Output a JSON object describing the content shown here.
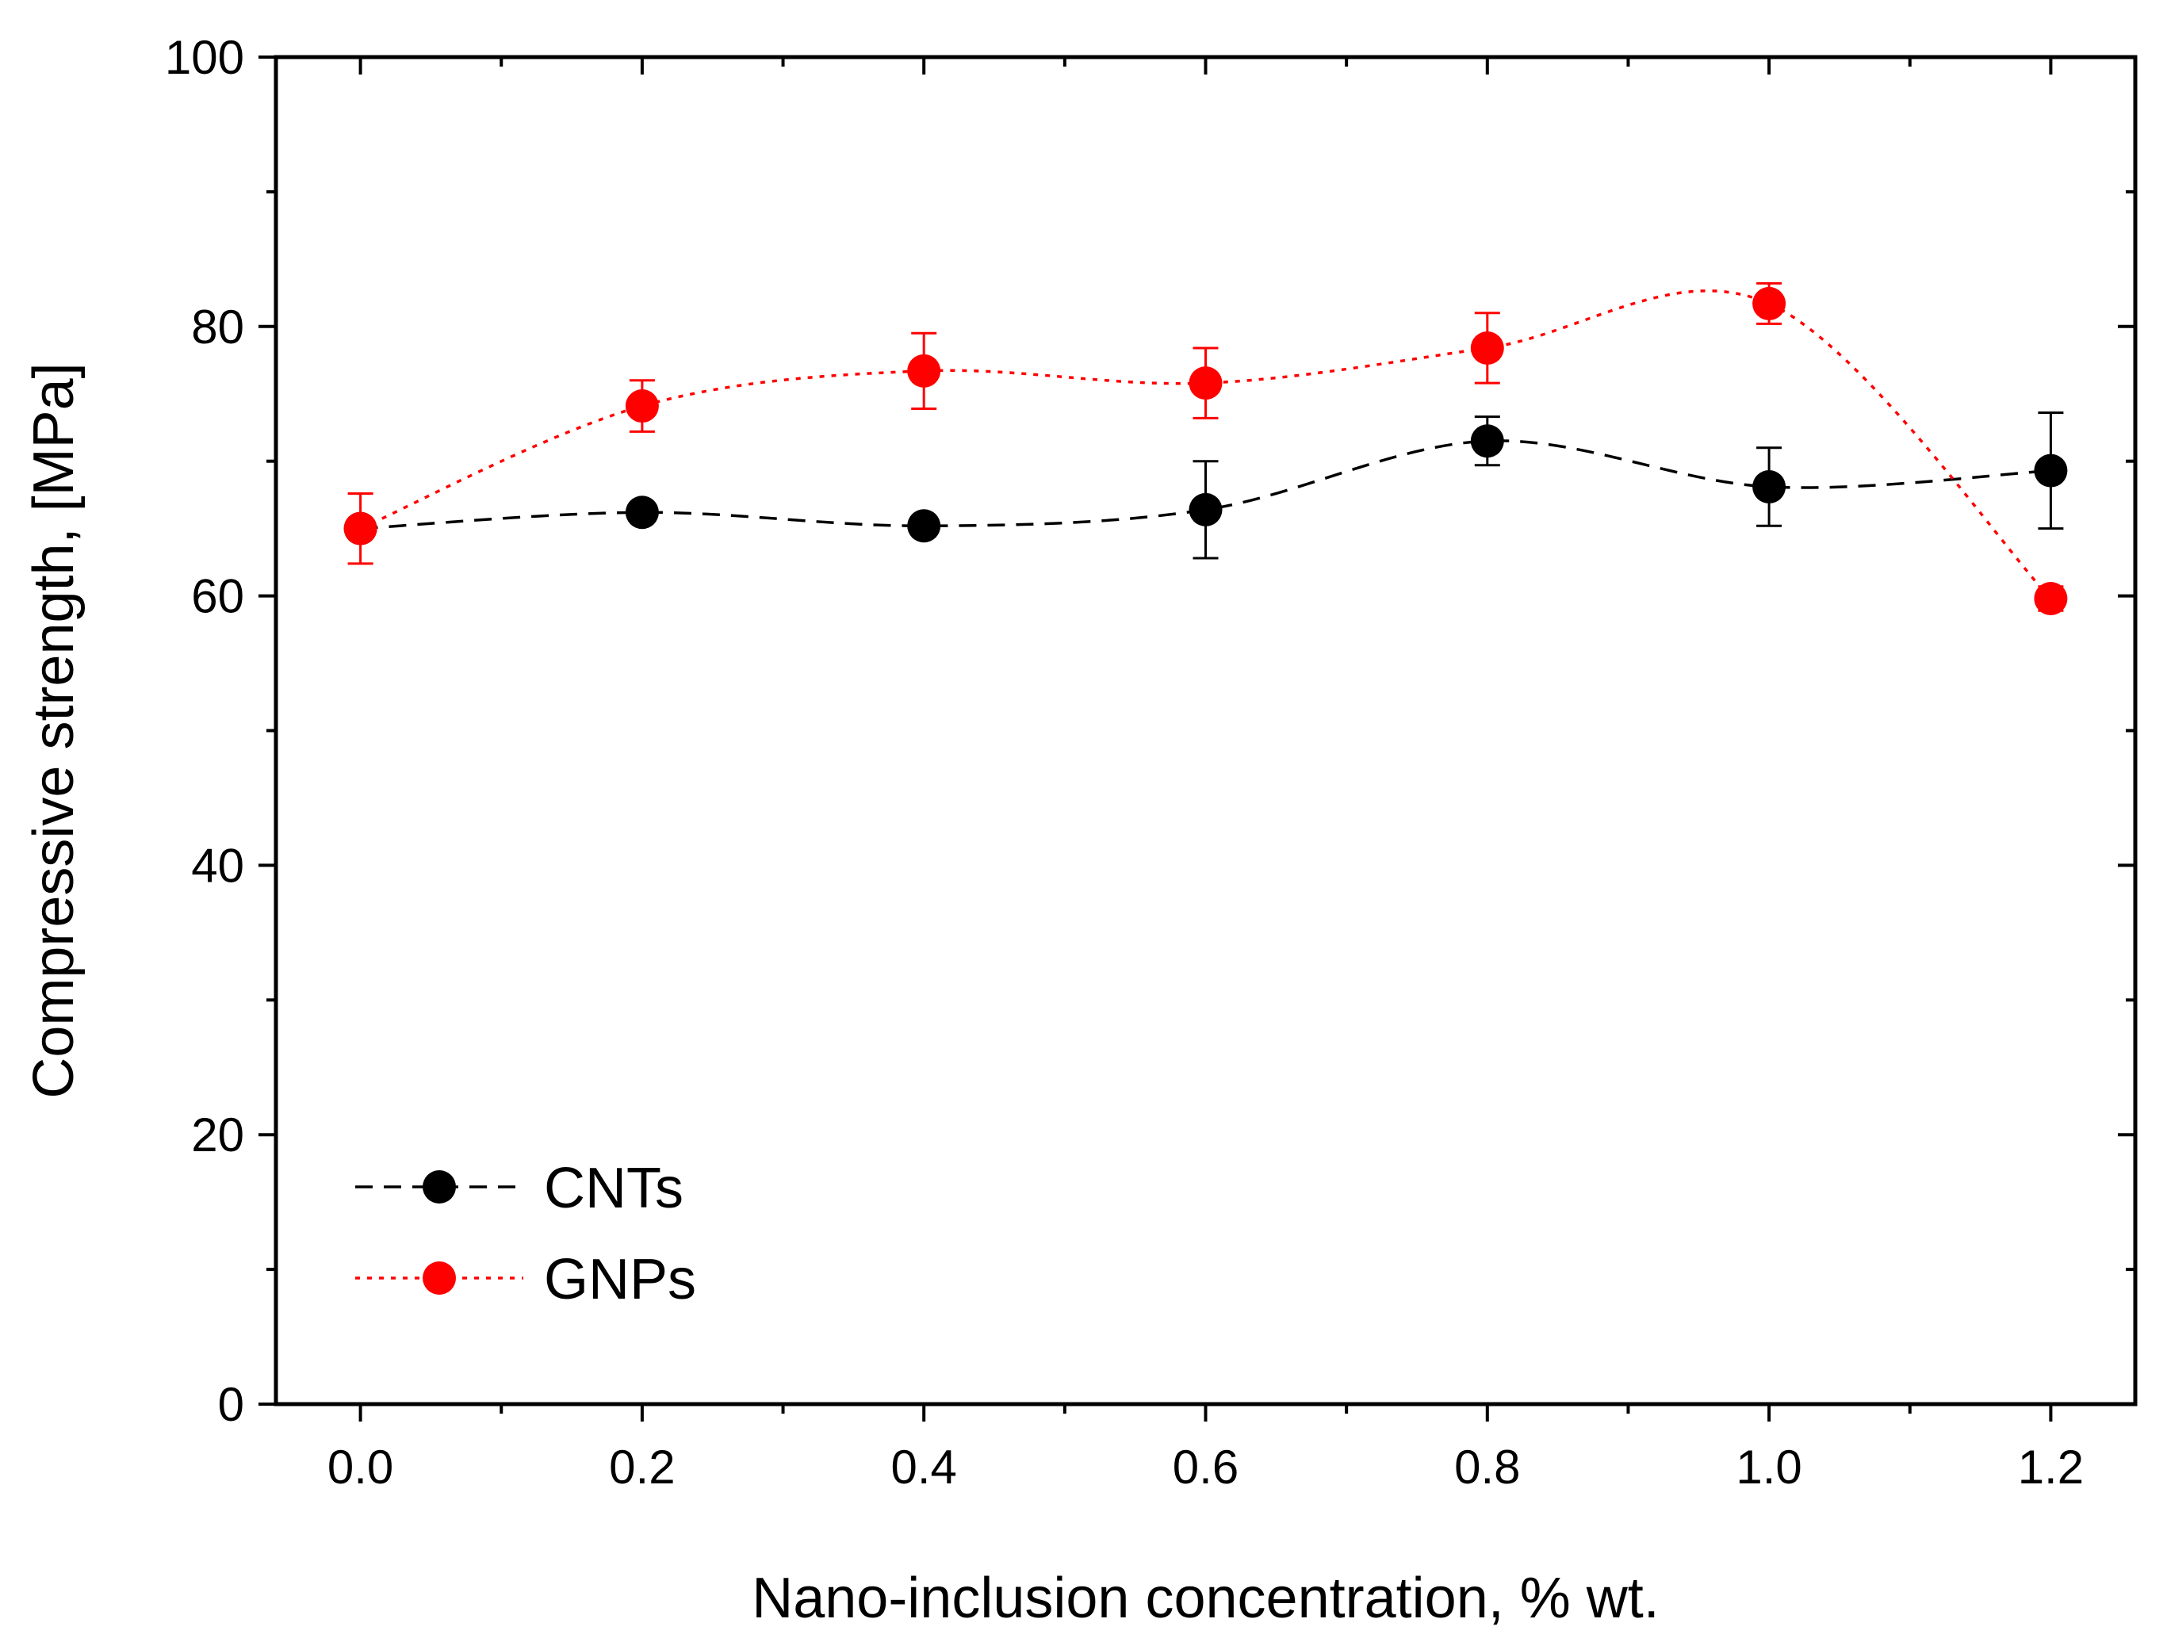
{
  "chart_data": {
    "type": "line",
    "title": "",
    "xlabel": "Nano-inclusion concentration, % wt.",
    "ylabel": "Compressive strength, [MPa]",
    "xlim": [
      -0.06,
      1.26
    ],
    "ylim": [
      0,
      100
    ],
    "grid": false,
    "legend_position": "bottom-left",
    "x_ticks": [
      0.0,
      0.2,
      0.4,
      0.6,
      0.8,
      1.0,
      1.2
    ],
    "x_tick_labels": [
      "0.0",
      "0.2",
      "0.4",
      "0.6",
      "0.8",
      "1.0",
      "1.2"
    ],
    "x_minor_ticks": [
      0.1,
      0.3,
      0.5,
      0.7,
      0.9,
      1.1
    ],
    "y_ticks": [
      0,
      20,
      40,
      60,
      80,
      100
    ],
    "y_tick_labels": [
      "0",
      "20",
      "40",
      "60",
      "80",
      "100"
    ],
    "y_minor_ticks": [
      10,
      30,
      50,
      70,
      90
    ],
    "series": [
      {
        "name": "CNTs",
        "color": "#000000",
        "line_style": "dashed",
        "x": [
          0.0,
          0.2,
          0.4,
          0.6,
          0.8,
          1.0,
          1.2
        ],
        "values": [
          65.0,
          66.2,
          65.2,
          66.4,
          71.5,
          68.1,
          69.3
        ],
        "errors": [
          0.0,
          0.7,
          0.5,
          3.6,
          1.8,
          2.9,
          4.3
        ]
      },
      {
        "name": "GNPs",
        "color": "#ff0000",
        "line_style": "dotted",
        "x": [
          0.0,
          0.2,
          0.4,
          0.6,
          0.8,
          1.0,
          1.2
        ],
        "values": [
          65.0,
          74.1,
          76.7,
          75.8,
          78.4,
          81.7,
          59.8
        ],
        "errors": [
          2.6,
          1.9,
          2.8,
          2.6,
          2.6,
          1.5,
          0.9
        ]
      }
    ]
  }
}
